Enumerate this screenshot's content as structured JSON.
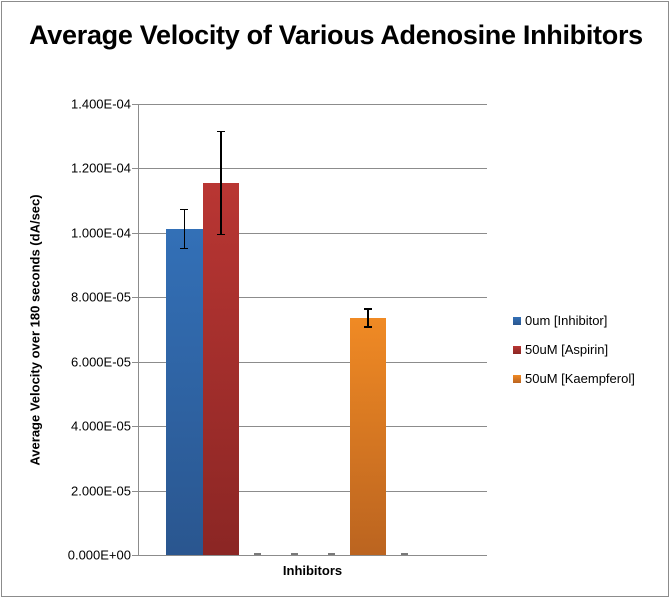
{
  "chart_data": {
    "type": "bar",
    "title": "Average Velocity of Various Adenosine Inhibitors",
    "xlabel": "Inhibitors",
    "ylabel": "Average Velocity over 180 seconds (dA/sec)",
    "ylim": [
      0,
      0.00014
    ],
    "yticks": [
      "0.000E+00",
      "2.000E-05",
      "4.000E-05",
      "6.000E-05",
      "8.000E-05",
      "1.000E-04",
      "1.200E-04",
      "1.400E-04"
    ],
    "ytick_values": [
      0,
      2e-05,
      4e-05,
      6e-05,
      8e-05,
      0.0001,
      0.00012,
      0.00014
    ],
    "grid": true,
    "legend_position": "right",
    "series": [
      {
        "name": "0um [Inhibitor]",
        "color": "#3370b7",
        "color_dark": "#2a568f",
        "values": [
          0.0001012,
          0
        ],
        "errors": [
          6e-06,
          0
        ]
      },
      {
        "name": "50uM [Aspirin]",
        "color": "#b93633",
        "color_dark": "#8b2624",
        "values": [
          0.0001155,
          0
        ],
        "errors": [
          1.6e-05,
          0
        ]
      },
      {
        "name": "50uM [Kaempferol]",
        "color": "#f08a24",
        "color_dark": "#bb6420",
        "values": [
          0,
          7.36e-05
        ],
        "errors": [
          0,
          2.8e-06
        ]
      }
    ],
    "bars": [
      {
        "slot": 0,
        "series": 0,
        "value": 0.0001012,
        "error": 6e-06
      },
      {
        "slot": 1,
        "series": 1,
        "value": 0.0001155,
        "error": 1.6e-05
      },
      {
        "slot": 2,
        "series": 2,
        "value": 0,
        "error": 0
      },
      {
        "slot": 3,
        "series": 0,
        "value": 0,
        "error": 0
      },
      {
        "slot": 4,
        "series": 1,
        "value": 0,
        "error": 0
      },
      {
        "slot": 5,
        "series": 2,
        "value": 7.36e-05,
        "error": 2.8e-06
      },
      {
        "slot": 6,
        "series": 0,
        "value": 0,
        "error": 0
      }
    ]
  }
}
